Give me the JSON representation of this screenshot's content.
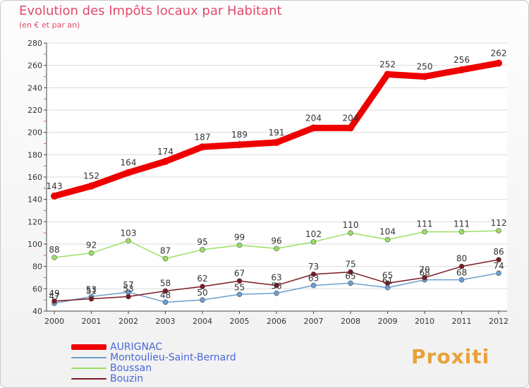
{
  "chart_data": {
    "type": "line",
    "title": "Evolution des Impôts locaux par Habitant",
    "subtitle": "(en € et par an)",
    "x": [
      "2000",
      "2001",
      "2002",
      "2003",
      "2004",
      "2005",
      "2006",
      "2007",
      "2008",
      "2009",
      "2010",
      "2011",
      "2012"
    ],
    "ylim": [
      40,
      280
    ],
    "yticks": [
      40,
      60,
      80,
      100,
      120,
      140,
      160,
      180,
      200,
      220,
      240,
      260,
      280
    ],
    "series": [
      {
        "name": "AURIGNAC",
        "color": "#ee0000",
        "values": [
          143,
          152,
          164,
          174,
          187,
          189,
          191,
          204,
          204,
          252,
          250,
          256,
          262
        ]
      },
      {
        "name": "Montoulieu-Saint-Bernard",
        "color": "#6b9fcf",
        "values": [
          47,
          53,
          57,
          48,
          50,
          55,
          56,
          63,
          65,
          61,
          68,
          68,
          74
        ]
      },
      {
        "name": "Boussan",
        "color": "#99e063",
        "values": [
          88,
          92,
          103,
          87,
          95,
          99,
          96,
          102,
          110,
          104,
          111,
          111,
          112
        ]
      },
      {
        "name": "Bouzin",
        "color": "#7a1a22",
        "values": [
          49,
          51,
          53,
          58,
          62,
          67,
          63,
          73,
          75,
          65,
          70,
          80,
          86
        ]
      }
    ]
  },
  "logo": {
    "text": "Proxiti"
  }
}
